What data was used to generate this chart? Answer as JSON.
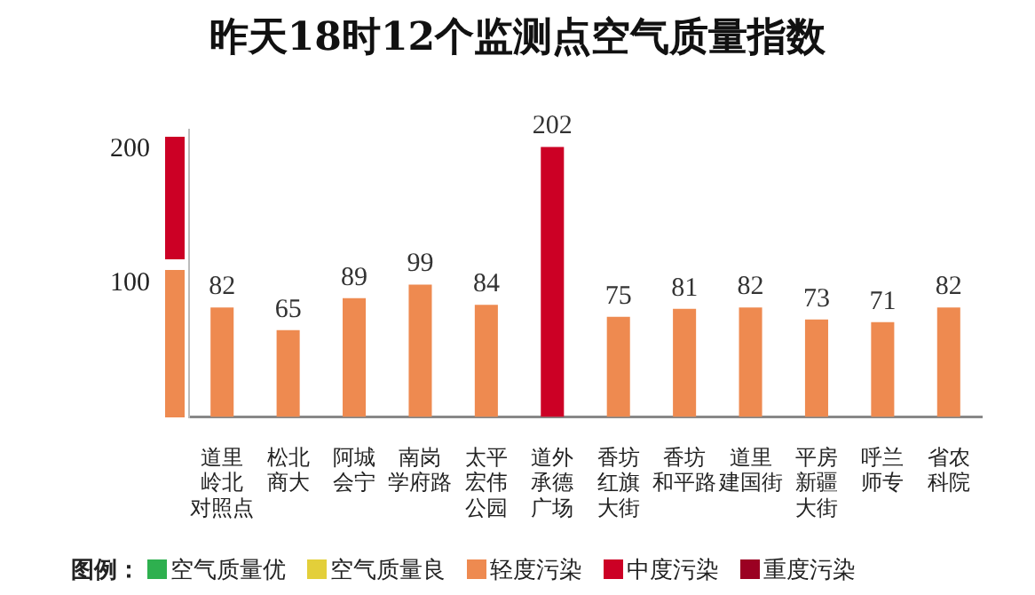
{
  "chart_data": {
    "type": "bar",
    "title": "昨天18时12个监测点空气质量指数",
    "categories": [
      "道里岭北对照点",
      "松北商大",
      "阿城会宁",
      "南岗学府路",
      "太平宏伟公园",
      "道外承德广场",
      "香坊红旗大街",
      "香坊和平路",
      "道里建国街",
      "平房新疆大街",
      "呼兰师专",
      "省农科院"
    ],
    "stacked": true,
    "series": [
      {
        "name": "空气质量优",
        "color": "#2eb04f",
        "values": [
          null,
          null,
          null,
          null,
          null,
          null,
          null,
          null,
          null,
          null,
          null,
          null
        ]
      },
      {
        "name": "空气质量良",
        "color": "#e3cf3a",
        "values": [
          null,
          null,
          null,
          null,
          null,
          null,
          null,
          null,
          null,
          null,
          null,
          null
        ]
      },
      {
        "name": "轻度污染",
        "color": "#ee8a50",
        "values": [
          82,
          65,
          89,
          99,
          84,
          null,
          75,
          81,
          82,
          73,
          71,
          82
        ]
      },
      {
        "name": "中度污染",
        "color": "#cc0025",
        "values": [
          null,
          null,
          null,
          null,
          null,
          202,
          null,
          null,
          null,
          null,
          null,
          null
        ]
      },
      {
        "name": "重度污染",
        "color": "#9b0022",
        "values": [
          null,
          null,
          null,
          null,
          null,
          null,
          null,
          null,
          null,
          null,
          null,
          null
        ]
      }
    ],
    "ylim": [
      0,
      215
    ],
    "yticks": [
      100,
      200
    ],
    "grid": false,
    "data_labels": true,
    "legend": "bottom",
    "legend_title": "图例："
  }
}
